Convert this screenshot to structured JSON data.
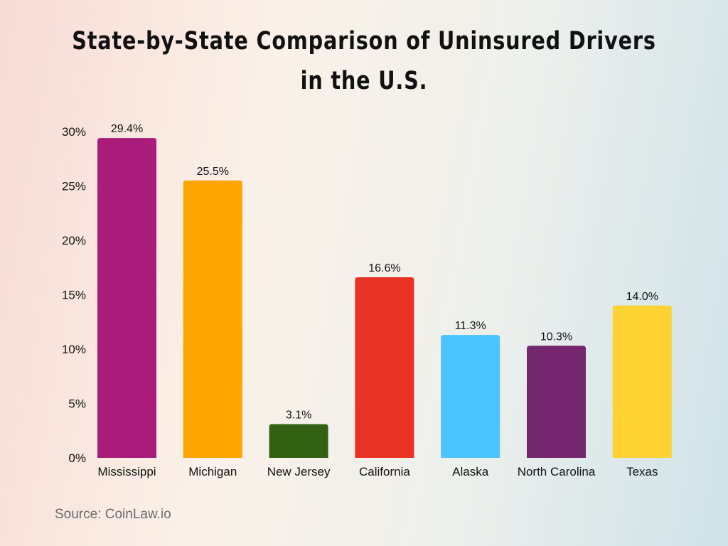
{
  "chart_data": {
    "type": "bar",
    "title_lines": [
      "State-by-State Comparison of Uninsured Drivers",
      "in the U.S."
    ],
    "categories": [
      "Mississippi",
      "Michigan",
      "New Jersey",
      "California",
      "Alaska",
      "North Carolina",
      "Texas"
    ],
    "values": [
      29.4,
      25.5,
      3.1,
      16.6,
      11.3,
      10.3,
      14.0
    ],
    "data_labels": [
      "29.4%",
      "25.5%",
      "3.1%",
      "16.6%",
      "11.3%",
      "10.3%",
      "14.0%"
    ],
    "colors": [
      "#A91C7A",
      "#FFA500",
      "#336113",
      "#E83223",
      "#4BC4FF",
      "#74276F",
      "#FFD233"
    ],
    "ylim": [
      0,
      30
    ],
    "yticks": [
      0,
      5,
      10,
      15,
      20,
      25,
      30
    ],
    "ytick_labels": [
      "0%",
      "5%",
      "10%",
      "15%",
      "20%",
      "25%",
      "30%"
    ],
    "xlabel": "",
    "ylabel": "",
    "grid": false,
    "legend": "none"
  },
  "source": "Source: CoinLaw.io"
}
